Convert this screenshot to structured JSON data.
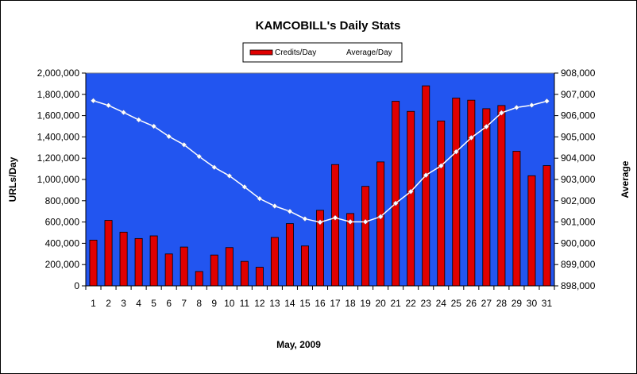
{
  "chart_data": {
    "type": "bar",
    "title": "KAMCOBILL's Daily Stats",
    "xlabel": "May, 2009",
    "ylabel": "URLs/Day",
    "y2label": "Average",
    "categories": [
      "1",
      "2",
      "3",
      "4",
      "5",
      "6",
      "7",
      "8",
      "9",
      "10",
      "11",
      "12",
      "13",
      "14",
      "15",
      "16",
      "17",
      "18",
      "19",
      "20",
      "21",
      "22",
      "23",
      "24",
      "25",
      "26",
      "27",
      "28",
      "29",
      "30",
      "31"
    ],
    "ylim": [
      0,
      2000000
    ],
    "y2lim": [
      898000,
      908000
    ],
    "y_ticks": [
      "0",
      "200,000",
      "400,000",
      "600,000",
      "800,000",
      "1,000,000",
      "1,200,000",
      "1,400,000",
      "1,600,000",
      "1,800,000",
      "2,000,000"
    ],
    "y2_ticks": [
      "898,000",
      "899,000",
      "900,000",
      "901,000",
      "902,000",
      "903,000",
      "904,000",
      "905,000",
      "906,000",
      "907,000",
      "908,000"
    ],
    "legend_position": "top",
    "grid": false,
    "plot_background": "#2255f0",
    "series": [
      {
        "name": "Credits/Day",
        "kind": "bar",
        "axis": "left",
        "color": "#e00000",
        "values": [
          430000,
          615000,
          505000,
          445000,
          470000,
          300000,
          365000,
          135000,
          290000,
          360000,
          230000,
          175000,
          455000,
          585000,
          375000,
          710000,
          1140000,
          680000,
          935000,
          1165000,
          1735000,
          1640000,
          1880000,
          1550000,
          1765000,
          1745000,
          1665000,
          1695000,
          1265000,
          1035000,
          1130000
        ]
      },
      {
        "name": "Average/Day",
        "kind": "line",
        "axis": "right",
        "color": "#ffffff",
        "values": [
          906700,
          906480,
          906150,
          905800,
          905500,
          905020,
          904630,
          904080,
          903570,
          903170,
          902650,
          902100,
          901750,
          901500,
          901150,
          900990,
          901200,
          901010,
          901010,
          901250,
          901880,
          902430,
          903200,
          903640,
          904300,
          904960,
          905480,
          906130,
          906380,
          906490,
          906680
        ]
      }
    ]
  }
}
